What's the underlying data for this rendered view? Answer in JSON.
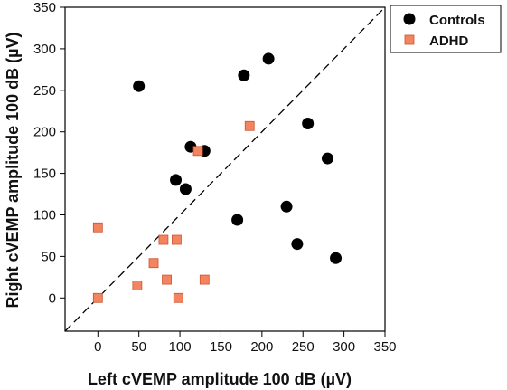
{
  "chart_data": {
    "type": "scatter",
    "xlabel": "Left cVEMP amplitude 100 dB (µV)",
    "ylabel": "Right cVEMP amplitude 100 dB (µV)",
    "xlim": [
      -40,
      350
    ],
    "ylim": [
      -40,
      350
    ],
    "xticks": [
      0,
      50,
      100,
      150,
      200,
      250,
      300,
      350
    ],
    "yticks": [
      0,
      50,
      100,
      150,
      200,
      250,
      300,
      350
    ],
    "grid": false,
    "legend_position": "top-right",
    "reference_line": {
      "style": "dashed",
      "from": [
        -40,
        -40
      ],
      "to": [
        350,
        350
      ]
    },
    "series": [
      {
        "name": "Controls",
        "marker": "circle",
        "color": "#000000",
        "points": [
          [
            50,
            255
          ],
          [
            95,
            142
          ],
          [
            107,
            131
          ],
          [
            113,
            182
          ],
          [
            130,
            177
          ],
          [
            170,
            94
          ],
          [
            178,
            268
          ],
          [
            208,
            288
          ],
          [
            230,
            110
          ],
          [
            243,
            65
          ],
          [
            256,
            210
          ],
          [
            280,
            168
          ],
          [
            290,
            48
          ]
        ]
      },
      {
        "name": "ADHD",
        "marker": "square",
        "color": "#f4845f",
        "points": [
          [
            0,
            85
          ],
          [
            0,
            0
          ],
          [
            48,
            15
          ],
          [
            68,
            42
          ],
          [
            80,
            70
          ],
          [
            84,
            22
          ],
          [
            96,
            70
          ],
          [
            98,
            0
          ],
          [
            122,
            177
          ],
          [
            130,
            22
          ],
          [
            185,
            207
          ]
        ]
      }
    ]
  }
}
